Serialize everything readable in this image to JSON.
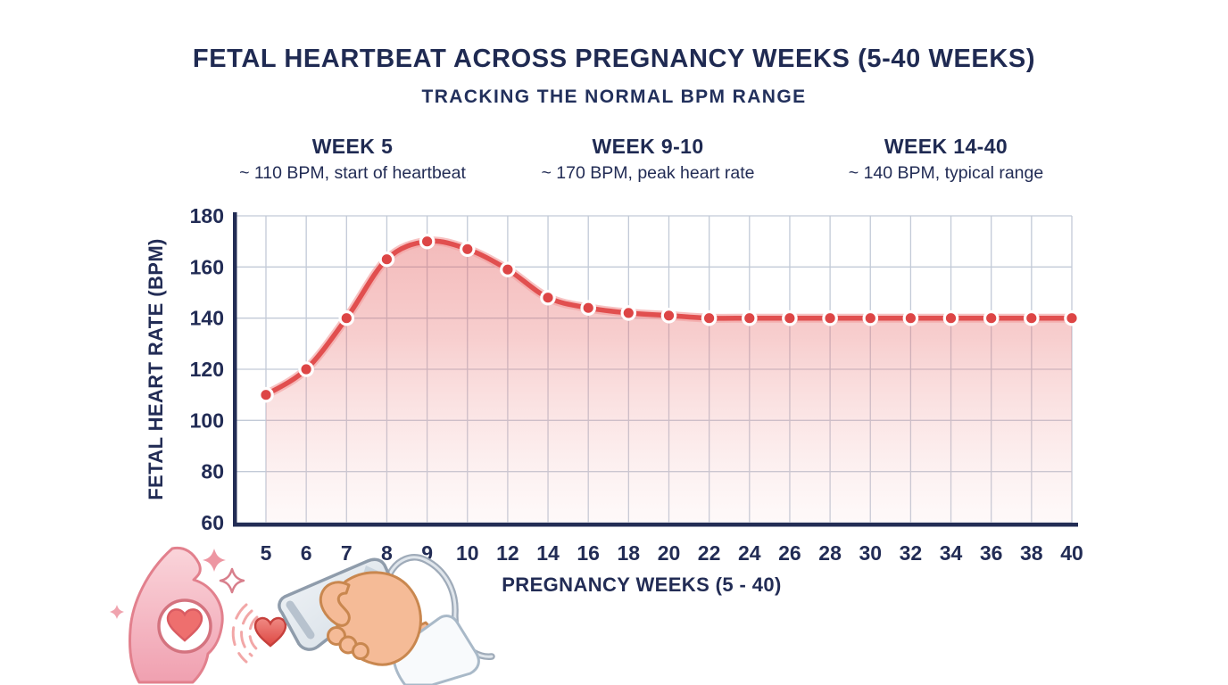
{
  "title": "FETAL HEARTBEAT ACROSS PREGNANCY WEEKS (5-40 WEEKS)",
  "subtitle": "TRACKING THE NORMAL BPM RANGE",
  "annotations": [
    {
      "heading": "WEEK 5",
      "detail": "~ 110 BPM, start of heartbeat"
    },
    {
      "heading": "WEEK 9-10",
      "detail": "~ 170 BPM, peak heart rate"
    },
    {
      "heading": "WEEK 14-40",
      "detail": "~ 140 BPM, typical range"
    }
  ],
  "chart_data": {
    "type": "area",
    "title": "Fetal heartbeat across pregnancy weeks",
    "x": [
      5,
      6,
      7,
      8,
      9,
      10,
      12,
      14,
      16,
      18,
      20,
      22,
      24,
      26,
      28,
      30,
      32,
      34,
      36,
      38,
      40
    ],
    "values": [
      110,
      120,
      140,
      163,
      170,
      167,
      159,
      148,
      144,
      142,
      141,
      140,
      140,
      140,
      140,
      140,
      140,
      140,
      140,
      140,
      140
    ],
    "xlabel": "PREGNANCY WEEKS (5 - 40)",
    "ylabel": "FETAL HEART RATE (BPM)",
    "ylim": [
      60,
      180
    ],
    "yticks": [
      60,
      80,
      100,
      120,
      140,
      160,
      180
    ],
    "grid": true,
    "x_spacing": "equal-per-tick",
    "legend": "none",
    "notes": "smooth curve with a marker dot on every week tick; pink gradient area fill under the curve"
  },
  "colors": {
    "text_navy": "#1f2a52",
    "axis_navy": "#232d55",
    "grid": "#c2cad7",
    "line": "#e14f4f",
    "line_halo": "#f2a2a2",
    "point_fill": "#dd4545",
    "point_ring": "#ffffff",
    "area_top": "rgba(228,88,88,0.42)",
    "area_mid": "rgba(232,110,110,0.34)",
    "area_soft": "rgba(240,160,160,0.22)",
    "area_bottom": "rgba(248,210,210,0.12)",
    "belly_pink": "#f0a0b0",
    "heart_red": "#ee6f6e"
  },
  "illustration": {
    "parts": [
      "pregnant-belly-icon",
      "heart-in-circle-icon",
      "sparkle-icons",
      "beating-heart-icon",
      "sound-wave-arcs-icon",
      "ultrasound-probe-icon",
      "hand-icon",
      "sleeve-cuff-icon",
      "probe-cable-icon"
    ]
  }
}
